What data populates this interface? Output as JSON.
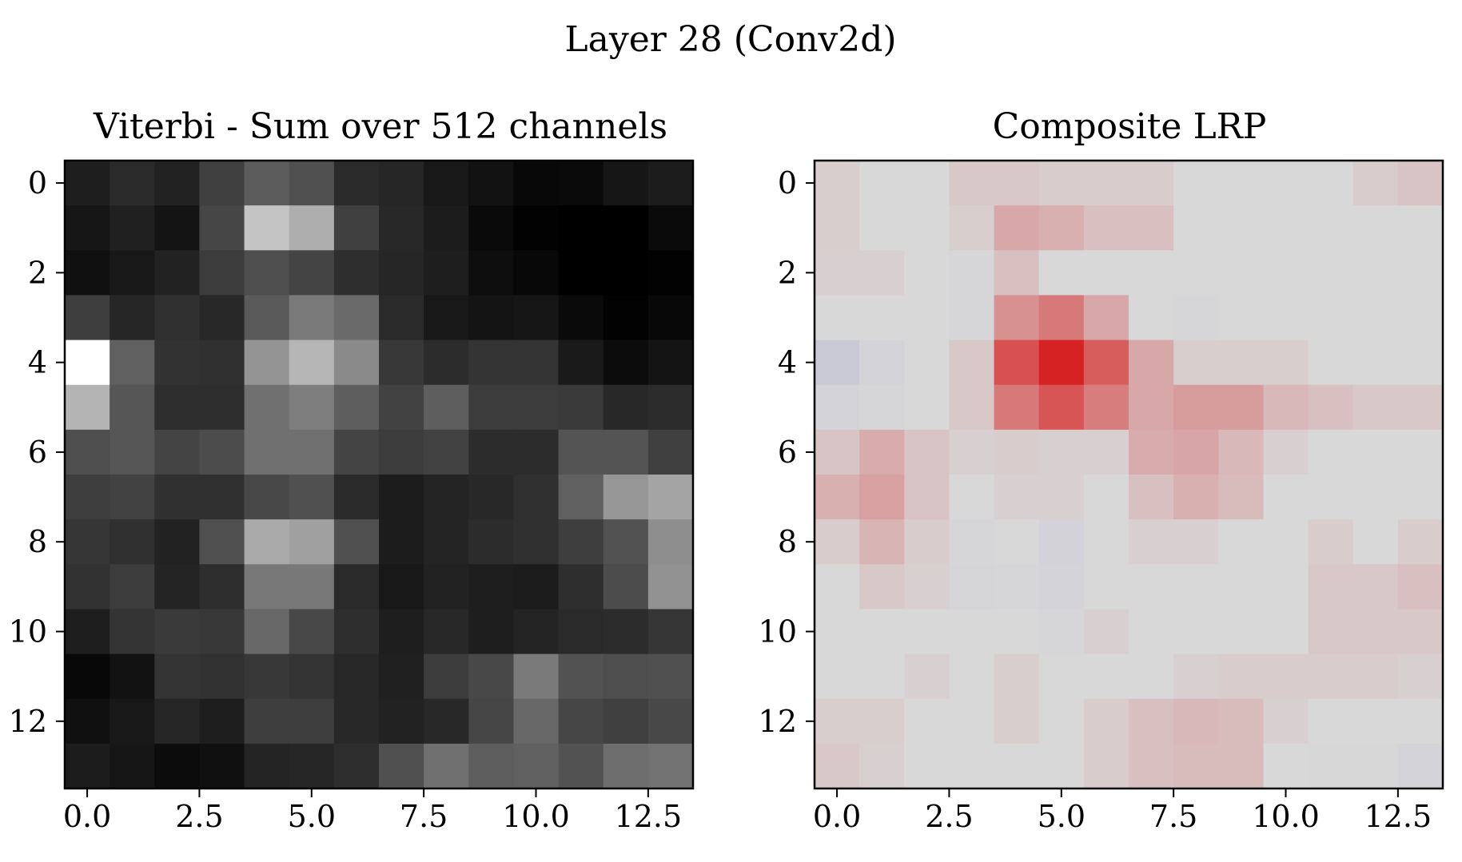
{
  "figure": {
    "title": "Layer 28 (Conv2d)"
  },
  "chart_data": [
    {
      "type": "heatmap",
      "title": "Viterbi - Sum over 512 channels",
      "colormap": "gray",
      "xticks": [
        "0.0",
        "2.5",
        "5.0",
        "7.5",
        "10.0",
        "12.5"
      ],
      "yticks": [
        "0",
        "2",
        "4",
        "6",
        "8",
        "10",
        "12"
      ],
      "xlim": [
        -0.5,
        13.5
      ],
      "ylim": [
        13.5,
        -0.5
      ],
      "value_range": [
        0,
        255
      ],
      "values": [
        [
          30,
          42,
          34,
          64,
          92,
          80,
          42,
          38,
          24,
          18,
          8,
          10,
          22,
          28
        ],
        [
          22,
          32,
          20,
          70,
          196,
          174,
          64,
          40,
          28,
          10,
          2,
          0,
          0,
          10
        ],
        [
          16,
          24,
          34,
          60,
          78,
          68,
          46,
          38,
          30,
          14,
          8,
          0,
          0,
          2
        ],
        [
          62,
          38,
          48,
          40,
          90,
          122,
          106,
          42,
          24,
          20,
          22,
          10,
          2,
          8
        ],
        [
          255,
          96,
          50,
          48,
          148,
          182,
          138,
          56,
          44,
          52,
          52,
          26,
          12,
          20
        ],
        [
          180,
          86,
          46,
          46,
          112,
          126,
          94,
          66,
          94,
          60,
          60,
          58,
          40,
          44
        ],
        [
          78,
          86,
          68,
          76,
          112,
          112,
          68,
          60,
          66,
          44,
          44,
          84,
          84,
          64
        ],
        [
          62,
          66,
          48,
          48,
          72,
          80,
          42,
          28,
          36,
          40,
          48,
          96,
          150,
          164
        ],
        [
          54,
          48,
          34,
          80,
          170,
          160,
          80,
          28,
          36,
          44,
          48,
          62,
          82,
          142
        ],
        [
          50,
          60,
          36,
          46,
          120,
          120,
          42,
          24,
          34,
          30,
          28,
          46,
          76,
          146
        ],
        [
          30,
          52,
          58,
          56,
          104,
          72,
          46,
          30,
          40,
          30,
          36,
          42,
          44,
          54
        ],
        [
          8,
          18,
          52,
          50,
          56,
          52,
          40,
          32,
          60,
          72,
          122,
          82,
          78,
          80
        ],
        [
          16,
          24,
          38,
          30,
          62,
          62,
          40,
          34,
          40,
          70,
          104,
          70,
          64,
          72
        ],
        [
          28,
          22,
          12,
          16,
          36,
          38,
          46,
          80,
          112,
          94,
          96,
          82,
          110,
          114
        ]
      ]
    },
    {
      "type": "heatmap",
      "title": "Composite LRP",
      "colormap": "bwr",
      "xticks": [
        "0.0",
        "2.5",
        "5.0",
        "7.5",
        "10.0",
        "12.5"
      ],
      "yticks": [
        "0",
        "2",
        "4",
        "6",
        "8",
        "10",
        "12"
      ],
      "xlim": [
        -0.5,
        13.5
      ],
      "ylim": [
        13.5,
        -0.5
      ],
      "value_range": [
        -1,
        1
      ],
      "values": [
        [
          0.05,
          0.0,
          0.0,
          0.08,
          0.08,
          0.06,
          0.06,
          0.06,
          0.0,
          0.0,
          0.0,
          0.0,
          0.06,
          0.1
        ],
        [
          0.05,
          0.0,
          0.0,
          0.05,
          0.25,
          0.2,
          0.12,
          0.12,
          0.0,
          0.0,
          0.0,
          0.0,
          0.0,
          0.0
        ],
        [
          0.04,
          0.04,
          0.0,
          -0.05,
          0.12,
          0.0,
          0.0,
          0.0,
          0.0,
          0.0,
          0.0,
          0.0,
          0.0,
          0.0
        ],
        [
          0.0,
          0.0,
          0.0,
          -0.04,
          0.36,
          0.48,
          0.24,
          0.0,
          -0.05,
          0.0,
          0.0,
          0.0,
          0.0,
          0.0
        ],
        [
          -0.3,
          -0.1,
          0.0,
          0.08,
          0.68,
          0.92,
          0.62,
          0.25,
          0.05,
          0.05,
          0.05,
          0.0,
          0.0,
          0.0
        ],
        [
          -0.1,
          -0.04,
          0.0,
          0.08,
          0.48,
          0.66,
          0.46,
          0.25,
          0.3,
          0.3,
          0.16,
          0.12,
          0.08,
          0.08
        ],
        [
          0.1,
          0.22,
          0.1,
          0.04,
          0.06,
          0.04,
          0.04,
          0.22,
          0.26,
          0.16,
          0.04,
          0.0,
          0.0,
          0.0
        ],
        [
          0.2,
          0.28,
          0.1,
          0.0,
          0.04,
          0.04,
          0.0,
          0.12,
          0.2,
          0.14,
          0.0,
          0.0,
          0.0,
          0.0
        ],
        [
          0.06,
          0.18,
          0.06,
          -0.04,
          0.0,
          -0.12,
          0.0,
          0.04,
          0.04,
          0.0,
          0.0,
          0.06,
          0.0,
          0.06
        ],
        [
          0.0,
          0.08,
          0.04,
          -0.07,
          -0.05,
          -0.08,
          0.0,
          0.0,
          0.0,
          0.0,
          0.0,
          0.08,
          0.08,
          0.12
        ],
        [
          0.0,
          0.0,
          0.0,
          0.0,
          0.0,
          -0.05,
          0.04,
          0.0,
          0.0,
          0.0,
          0.0,
          0.08,
          0.08,
          0.08
        ],
        [
          0.0,
          0.0,
          0.04,
          0.0,
          0.05,
          0.0,
          0.0,
          0.0,
          0.04,
          0.06,
          0.06,
          0.06,
          0.06,
          0.04
        ],
        [
          0.05,
          0.05,
          0.0,
          0.0,
          0.05,
          0.0,
          0.06,
          0.12,
          0.16,
          0.14,
          0.04,
          0.0,
          0.0,
          0.0
        ],
        [
          0.08,
          0.04,
          0.0,
          0.0,
          0.0,
          0.0,
          0.06,
          0.12,
          0.14,
          0.14,
          0.0,
          -0.03,
          -0.03,
          -0.08
        ]
      ]
    }
  ]
}
